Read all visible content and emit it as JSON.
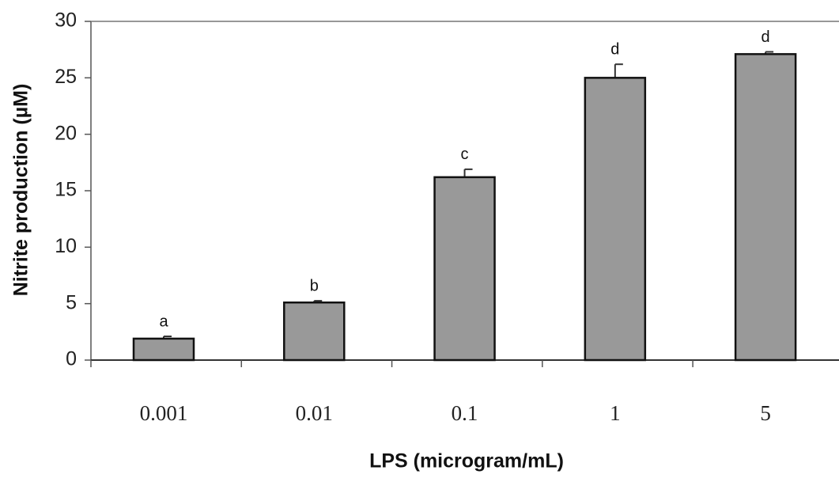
{
  "chart_data": {
    "type": "bar",
    "x_label": "LPS (microgram/mL)",
    "y_label": "Nitrite production (µM)",
    "categories": [
      "0.001",
      "0.01",
      "0.1",
      "1",
      "5"
    ],
    "values": [
      1.9,
      5.1,
      16.2,
      25,
      27.1
    ],
    "errors": [
      0.2,
      0.15,
      0.7,
      1.2,
      0.2
    ],
    "annotations": [
      "a",
      "b",
      "c",
      "d",
      "d"
    ],
    "color": "#999999",
    "ylim": [
      0,
      30
    ],
    "yticks": [
      0,
      5,
      10,
      15,
      20,
      25,
      30
    ],
    "grid": false
  }
}
